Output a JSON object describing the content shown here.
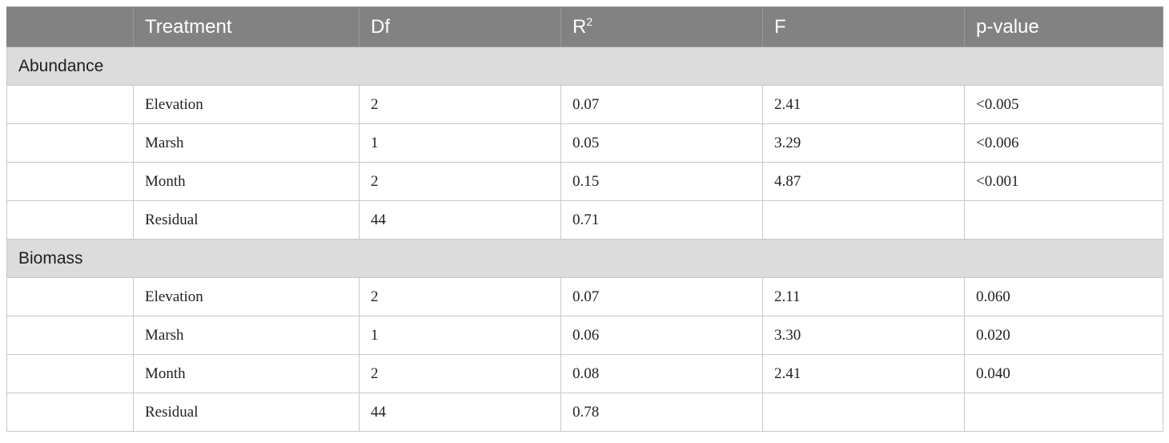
{
  "headers": [
    "",
    "Treatment",
    "Df",
    "R",
    "F",
    "p-value"
  ],
  "r_superscript": "2",
  "groups": [
    {
      "label": "Abundance",
      "rows": [
        {
          "treatment": "Elevation",
          "df": "2",
          "r2": "0.07",
          "f": "2.41",
          "p": "<0.005"
        },
        {
          "treatment": "Marsh",
          "df": "1",
          "r2": "0.05",
          "f": "3.29",
          "p": "<0.006"
        },
        {
          "treatment": "Month",
          "df": "2",
          "r2": "0.15",
          "f": "4.87",
          "p": "<0.001"
        },
        {
          "treatment": "Residual",
          "df": "44",
          "r2": "0.71",
          "f": "",
          "p": ""
        }
      ]
    },
    {
      "label": "Biomass",
      "rows": [
        {
          "treatment": "Elevation",
          "df": "2",
          "r2": "0.07",
          "f": "2.11",
          "p": "0.060"
        },
        {
          "treatment": "Marsh",
          "df": "1",
          "r2": "0.06",
          "f": "3.30",
          "p": "0.020"
        },
        {
          "treatment": "Month",
          "df": "2",
          "r2": "0.08",
          "f": "2.41",
          "p": "0.040"
        },
        {
          "treatment": "Residual",
          "df": "44",
          "r2": "0.78",
          "f": "",
          "p": ""
        }
      ]
    }
  ]
}
